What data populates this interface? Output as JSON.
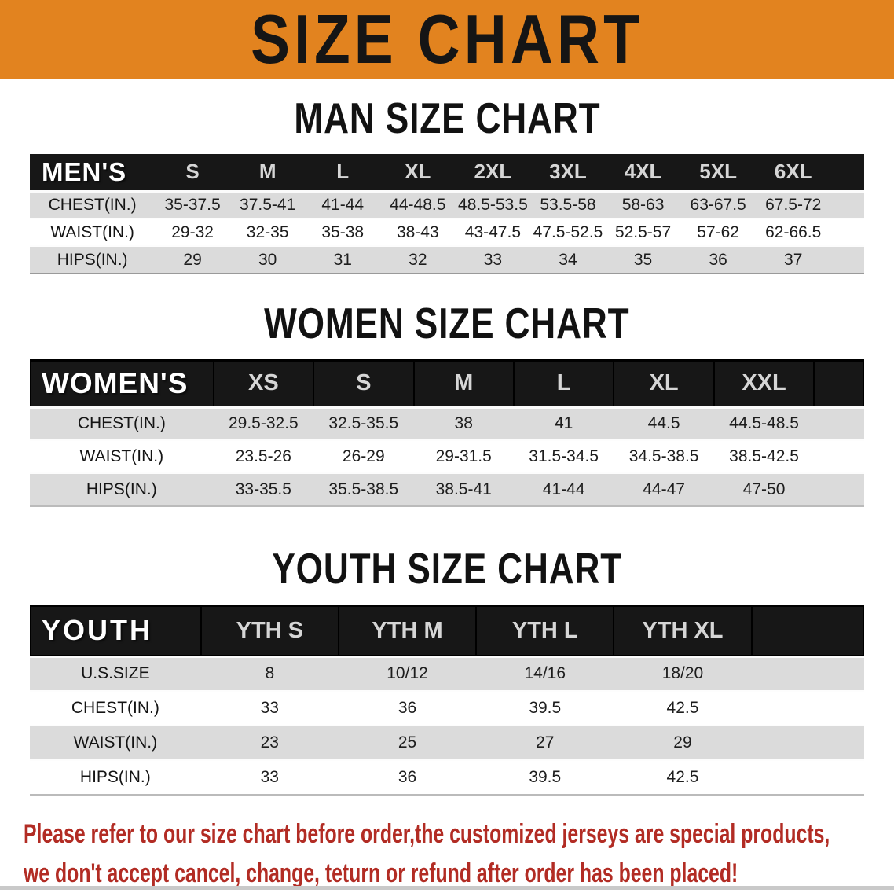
{
  "banner": {
    "title": "SIZE CHART"
  },
  "sections": [
    {
      "name": "men",
      "heading": "MAN SIZE CHART",
      "label": "MEN'S",
      "columns": [
        "S",
        "M",
        "L",
        "XL",
        "2XL",
        "3XL",
        "4XL",
        "5XL",
        "6XL"
      ],
      "rows": [
        {
          "label": "CHEST(IN.)",
          "values": [
            "35-37.5",
            "37.5-41",
            "41-44",
            "44-48.5",
            "48.5-53.5",
            "53.5-58",
            "58-63",
            "63-67.5",
            "67.5-72"
          ]
        },
        {
          "label": "WAIST(IN.)",
          "values": [
            "29-32",
            "32-35",
            "35-38",
            "38-43",
            "43-47.5",
            "47.5-52.5",
            "52.5-57",
            "57-62",
            "62-66.5"
          ]
        },
        {
          "label": "HIPS(IN.)",
          "values": [
            "29",
            "30",
            "31",
            "32",
            "33",
            "34",
            "35",
            "36",
            "37"
          ]
        }
      ]
    },
    {
      "name": "women",
      "heading": "WOMEN SIZE CHART",
      "label": "WOMEN'S",
      "columns": [
        "XS",
        "S",
        "M",
        "L",
        "XL",
        "XXL"
      ],
      "rows": [
        {
          "label": "CHEST(IN.)",
          "values": [
            "29.5-32.5",
            "32.5-35.5",
            "38",
            "41",
            "44.5",
            "44.5-48.5"
          ]
        },
        {
          "label": "WAIST(IN.)",
          "values": [
            "23.5-26",
            "26-29",
            "29-31.5",
            "31.5-34.5",
            "34.5-38.5",
            "38.5-42.5"
          ]
        },
        {
          "label": "HIPS(IN.)",
          "values": [
            "33-35.5",
            "35.5-38.5",
            "38.5-41",
            "41-44",
            "44-47",
            "47-50"
          ]
        }
      ]
    },
    {
      "name": "youth",
      "heading": "YOUTH SIZE CHART",
      "label": "YOUTH",
      "columns": [
        "YTH S",
        "YTH M",
        "YTH L",
        "YTH XL"
      ],
      "rows": [
        {
          "label": "U.S.SIZE",
          "values": [
            "8",
            "10/12",
            "14/16",
            "18/20"
          ]
        },
        {
          "label": "CHEST(IN.)",
          "values": [
            "33",
            "36",
            "39.5",
            "42.5"
          ]
        },
        {
          "label": "WAIST(IN.)",
          "values": [
            "23",
            "25",
            "27",
            "29"
          ]
        },
        {
          "label": "HIPS(IN.)",
          "values": [
            "33",
            "36",
            "39.5",
            "42.5"
          ]
        }
      ]
    }
  ],
  "footer": {
    "lines": [
      "Please refer to our size chart before order,the customized jerseys are special products,",
      "we don't accept cancel, change, teturn or refund after order has been placed!"
    ]
  },
  "colors": {
    "banner_bg": "#e2831f",
    "banner_text": "#151515",
    "header_bar_bg": "#171717",
    "header_bar_text": "#ffffff",
    "row_stripe_gray": "#dbdbdb",
    "row_stripe_white": "#ffffff",
    "footer_red": "#b22c24"
  }
}
